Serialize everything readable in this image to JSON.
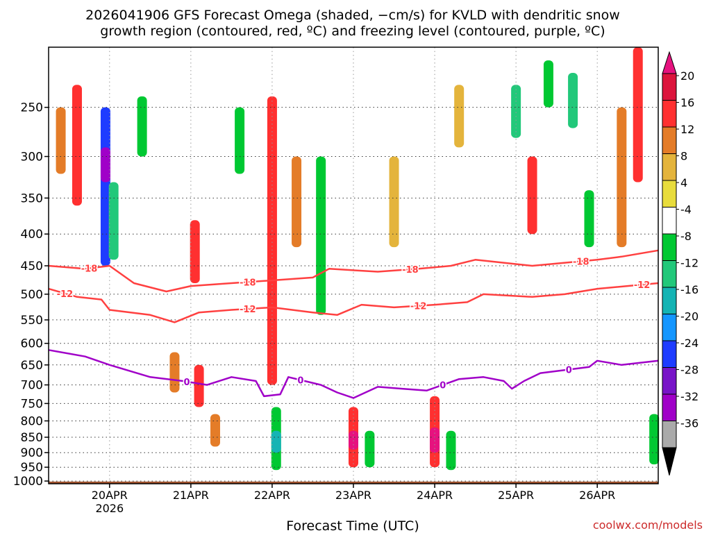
{
  "chart_data": {
    "type": "heatmap",
    "title_line1": "2026041906 GFS Forecast Omega (shaded, −cm/s) for KVLD with dendritic snow",
    "title_line2": "growth region (contoured, red, ºC) and freezing level (contoured, purple, ºC)",
    "xlabel": "Forecast Time (UTC)",
    "ylabel": "",
    "watermark": "coolwx.com/models",
    "x_ticks": [
      {
        "day": 0,
        "label": "20APR",
        "sublabel": "2026"
      },
      {
        "day": 1,
        "label": "21APR"
      },
      {
        "day": 2,
        "label": "22APR"
      },
      {
        "day": 3,
        "label": "23APR"
      },
      {
        "day": 4,
        "label": "24APR"
      },
      {
        "day": 5,
        "label": "25APR"
      },
      {
        "day": 6,
        "label": "26APR"
      }
    ],
    "xlim_days": [
      -0.75,
      6.75
    ],
    "y_ticks": [
      250,
      300,
      350,
      400,
      450,
      500,
      550,
      600,
      650,
      700,
      750,
      800,
      850,
      900,
      950,
      1000
    ],
    "ylim_hpa": [
      200,
      1010
    ],
    "colorbar": {
      "ticks": [
        "20",
        "16",
        "12",
        "8",
        "4",
        "-4",
        "-8",
        "-12",
        "-16",
        "-20",
        "-24",
        "-28",
        "-32",
        "-36"
      ],
      "colors": [
        "#dc143c",
        "#ff3030",
        "#e47c28",
        "#e4b43c",
        "#e8dc3c",
        "#ffffff",
        "#00c832",
        "#22c87a",
        "#14b4b4",
        "#1496ff",
        "#1e3cff",
        "#7814c8",
        "#a000c8",
        "#aaaaaa"
      ],
      "top_arrow_color": "#e6127f",
      "bottom_arrow_color": "#000000"
    },
    "omega_cells": [
      {
        "t": -0.6,
        "p1": 250,
        "p2": 320,
        "v": 8
      },
      {
        "t": -0.4,
        "p1": 230,
        "p2": 360,
        "v": 12
      },
      {
        "t": -0.05,
        "p1": 250,
        "p2": 450,
        "v": -24
      },
      {
        "t": -0.05,
        "p1": 290,
        "p2": 330,
        "v": -32
      },
      {
        "t": 0.05,
        "p1": 330,
        "p2": 440,
        "v": -12
      },
      {
        "t": 0.4,
        "p1": 240,
        "p2": 300,
        "v": -8
      },
      {
        "t": 0.8,
        "p1": 620,
        "p2": 720,
        "v": 8
      },
      {
        "t": 1.05,
        "p1": 380,
        "p2": 480,
        "v": 12
      },
      {
        "t": 1.1,
        "p1": 650,
        "p2": 760,
        "v": 12
      },
      {
        "t": 1.3,
        "p1": 780,
        "p2": 880,
        "v": 8
      },
      {
        "t": 1.6,
        "p1": 250,
        "p2": 320,
        "v": -8
      },
      {
        "t": 2.0,
        "p1": 240,
        "p2": 700,
        "v": 12
      },
      {
        "t": 2.05,
        "p1": 760,
        "p2": 960,
        "v": -8
      },
      {
        "t": 2.05,
        "p1": 830,
        "p2": 900,
        "v": -16
      },
      {
        "t": 2.3,
        "p1": 300,
        "p2": 420,
        "v": 8
      },
      {
        "t": 2.6,
        "p1": 300,
        "p2": 540,
        "v": -8
      },
      {
        "t": 3.0,
        "p1": 760,
        "p2": 950,
        "v": 12
      },
      {
        "t": 3.0,
        "p1": 830,
        "p2": 890,
        "v": 20
      },
      {
        "t": 3.2,
        "p1": 830,
        "p2": 950,
        "v": -8
      },
      {
        "t": 3.5,
        "p1": 300,
        "p2": 420,
        "v": 4
      },
      {
        "t": 4.0,
        "p1": 730,
        "p2": 950,
        "v": 12
      },
      {
        "t": 4.0,
        "p1": 820,
        "p2": 900,
        "v": 20
      },
      {
        "t": 4.2,
        "p1": 830,
        "p2": 960,
        "v": -8
      },
      {
        "t": 4.3,
        "p1": 230,
        "p2": 290,
        "v": 4
      },
      {
        "t": 5.0,
        "p1": 230,
        "p2": 280,
        "v": -12
      },
      {
        "t": 5.2,
        "p1": 300,
        "p2": 400,
        "v": 12
      },
      {
        "t": 5.4,
        "p1": 210,
        "p2": 250,
        "v": -8
      },
      {
        "t": 5.7,
        "p1": 220,
        "p2": 270,
        "v": -12
      },
      {
        "t": 5.9,
        "p1": 340,
        "p2": 420,
        "v": -8
      },
      {
        "t": 6.3,
        "p1": 250,
        "p2": 420,
        "v": 8
      },
      {
        "t": 6.5,
        "p1": 200,
        "p2": 330,
        "v": 12
      },
      {
        "t": 6.7,
        "p1": 780,
        "p2": 940,
        "v": -8
      }
    ],
    "contours": [
      {
        "name": "-18",
        "color": "#ff4040",
        "label_days": [
          -0.25,
          1.7,
          3.7,
          5.8
        ],
        "points": [
          [
            -0.75,
            450
          ],
          [
            -0.3,
            455
          ],
          [
            0.0,
            450
          ],
          [
            0.3,
            480
          ],
          [
            0.7,
            495
          ],
          [
            1.0,
            485
          ],
          [
            1.5,
            480
          ],
          [
            2.0,
            475
          ],
          [
            2.5,
            470
          ],
          [
            2.7,
            455
          ],
          [
            3.3,
            460
          ],
          [
            3.8,
            455
          ],
          [
            4.2,
            450
          ],
          [
            4.5,
            440
          ],
          [
            5.2,
            450
          ],
          [
            5.6,
            445
          ],
          [
            6.0,
            440
          ],
          [
            6.3,
            435
          ],
          [
            6.75,
            425
          ]
        ]
      },
      {
        "name": "-12",
        "color": "#ff4040",
        "label_days": [
          -0.55,
          1.7,
          3.8,
          6.55
        ],
        "points": [
          [
            -0.75,
            490
          ],
          [
            -0.4,
            505
          ],
          [
            -0.1,
            510
          ],
          [
            0.0,
            530
          ],
          [
            0.5,
            540
          ],
          [
            0.8,
            555
          ],
          [
            1.1,
            535
          ],
          [
            1.5,
            530
          ],
          [
            2.0,
            525
          ],
          [
            2.5,
            535
          ],
          [
            2.8,
            540
          ],
          [
            3.1,
            520
          ],
          [
            3.5,
            525
          ],
          [
            4.0,
            520
          ],
          [
            4.4,
            515
          ],
          [
            4.6,
            500
          ],
          [
            5.2,
            505
          ],
          [
            5.6,
            500
          ],
          [
            6.0,
            490
          ],
          [
            6.75,
            480
          ]
        ]
      },
      {
        "name": "0",
        "color": "#a000c8",
        "label_days": [
          0.95,
          2.35,
          4.1,
          5.65
        ],
        "points": [
          [
            -0.75,
            615
          ],
          [
            -0.3,
            630
          ],
          [
            0.0,
            650
          ],
          [
            0.5,
            680
          ],
          [
            0.9,
            690
          ],
          [
            1.2,
            700
          ],
          [
            1.5,
            680
          ],
          [
            1.8,
            690
          ],
          [
            1.9,
            730
          ],
          [
            2.1,
            725
          ],
          [
            2.2,
            680
          ],
          [
            2.6,
            700
          ],
          [
            2.8,
            720
          ],
          [
            3.0,
            735
          ],
          [
            3.3,
            705
          ],
          [
            3.6,
            710
          ],
          [
            3.9,
            715
          ],
          [
            4.1,
            700
          ],
          [
            4.3,
            685
          ],
          [
            4.6,
            680
          ],
          [
            4.85,
            690
          ],
          [
            4.95,
            710
          ],
          [
            5.1,
            690
          ],
          [
            5.3,
            670
          ],
          [
            5.7,
            660
          ],
          [
            5.9,
            655
          ],
          [
            6.0,
            640
          ],
          [
            6.3,
            650
          ],
          [
            6.75,
            640
          ]
        ]
      }
    ]
  }
}
